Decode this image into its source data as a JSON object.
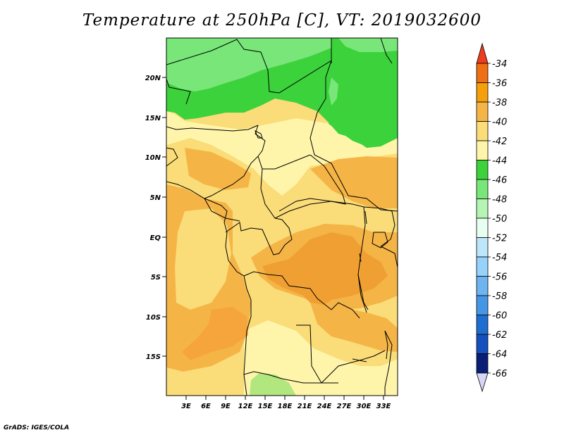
{
  "title": "Temperature at 250hPa [C], VT: 2019032600",
  "footer": "GrADS: IGES/COLA",
  "map": {
    "lat_labels": [
      "20N",
      "15N",
      "10N",
      "5N",
      "EQ",
      "5S",
      "10S",
      "15S"
    ],
    "lon_labels": [
      "3E",
      "6E",
      "9E",
      "12E",
      "15E",
      "18E",
      "21E",
      "24E",
      "27E",
      "30E",
      "33E"
    ]
  },
  "colorbar": {
    "labels": [
      "-34",
      "-36",
      "-38",
      "-40",
      "-42",
      "-44",
      "-46",
      "-48",
      "-50",
      "-52",
      "-54",
      "-56",
      "-58",
      "-60",
      "-62",
      "-64",
      "-66"
    ],
    "colors": [
      "#f03c1e",
      "#f06e14",
      "#f5a00a",
      "#f5b446",
      "#fadc78",
      "#fff5aa",
      "#3cd23c",
      "#78e678",
      "#b4f5b4",
      "#e6fff0",
      "#bde6fa",
      "#96d2fa",
      "#6eb4f0",
      "#4696e6",
      "#1e6ed2",
      "#1450be",
      "#0a1e78",
      "#d7d7f5"
    ]
  },
  "colors": {
    "c_m36": "#f06e14",
    "c_m38": "#f5b446",
    "c_m40": "#fadc78",
    "c_m42": "#fff5aa",
    "c_m44": "#3cd23c",
    "c_m46": "#78e678"
  }
}
